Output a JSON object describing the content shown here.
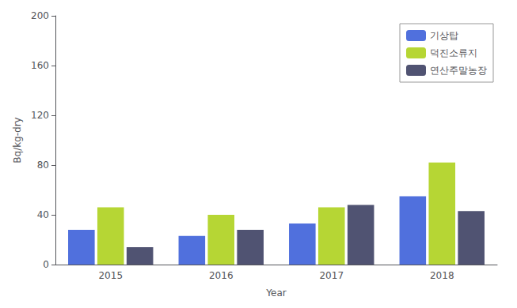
{
  "chart_data": {
    "type": "bar",
    "categories": [
      "2015",
      "2016",
      "2017",
      "2018"
    ],
    "series": [
      {
        "name": "기상탑",
        "values": [
          28,
          23,
          33,
          55
        ]
      },
      {
        "name": "덕진소류지",
        "values": [
          46,
          40,
          46,
          82
        ]
      },
      {
        "name": "연산주말농장",
        "values": [
          14,
          28,
          48,
          43
        ]
      }
    ],
    "xlabel": "Year",
    "ylabel": "Bq/kg-dry",
    "ylim": [
      0,
      200
    ],
    "yticks": [
      0,
      40,
      80,
      120,
      160,
      200
    ],
    "grid": false,
    "legend": "upper right"
  }
}
